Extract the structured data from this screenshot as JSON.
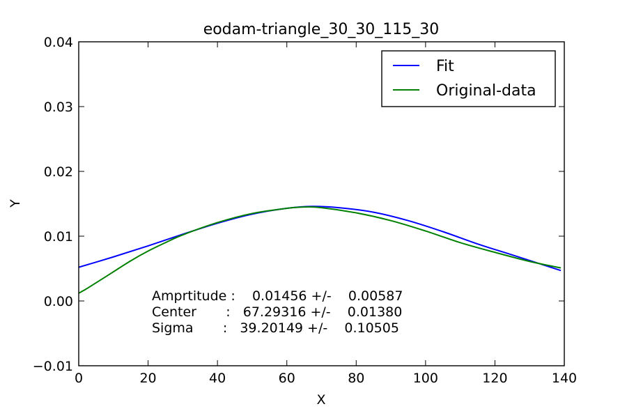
{
  "chart_data": {
    "type": "line",
    "title": "eodam-triangle_30_30_115_30",
    "xlabel": "X",
    "ylabel": "Y",
    "xlim": [
      0,
      140
    ],
    "ylim": [
      -0.01,
      0.04
    ],
    "xticks": [
      "0",
      "20",
      "40",
      "60",
      "80",
      "100",
      "120",
      "140"
    ],
    "yticks": [
      "−0.01",
      "0.00",
      "0.01",
      "0.02",
      "0.03",
      "0.04"
    ],
    "grid": false,
    "legend_position": "top-right",
    "series": [
      {
        "name": "Fit",
        "color": "#0000ff",
        "x": [
          0,
          10,
          20,
          30,
          40,
          50,
          60,
          67.3,
          75,
          85,
          95,
          105,
          115,
          125,
          139
        ],
        "y": [
          0.0052,
          0.0068,
          0.0085,
          0.0103,
          0.012,
          0.0134,
          0.0143,
          0.0146,
          0.0144,
          0.0137,
          0.0124,
          0.0107,
          0.0088,
          0.0071,
          0.0047
        ]
      },
      {
        "name": "Original-data",
        "color": "#008000",
        "x": [
          0,
          2,
          5,
          10,
          15,
          20,
          25,
          30,
          40,
          50,
          60,
          65,
          70,
          80,
          90,
          100,
          110,
          120,
          130,
          139
        ],
        "y": [
          0.0012,
          0.0018,
          0.0028,
          0.0045,
          0.0062,
          0.0077,
          0.009,
          0.0102,
          0.0121,
          0.0135,
          0.0143,
          0.0145,
          0.0144,
          0.0136,
          0.0124,
          0.0108,
          0.009,
          0.0075,
          0.0061,
          0.0051
        ]
      }
    ],
    "annotations": [
      "Amprtitude :    0.01456 +/-    0.00587",
      "Center       :   67.29316 +/-    0.01380",
      "Sigma       :   39.20149 +/-    0.10505"
    ]
  }
}
